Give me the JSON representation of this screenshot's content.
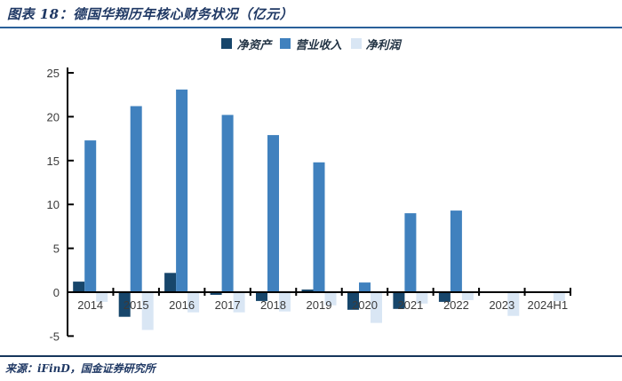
{
  "header": {
    "title": "图表 18：德国华翔历年核心财务状况（亿元）"
  },
  "footer": {
    "source": "来源：iFinD，国金证券研究所"
  },
  "colors": {
    "title_text": "#1F3864",
    "title_rule": "#2A6099",
    "footer_rule": "#16365C",
    "axis_line": "#000000",
    "axis_label": "#3B3B3B",
    "series_net_assets": "#17466B",
    "series_revenue": "#4081BE",
    "series_net_profit": "#D9E6F4"
  },
  "chart_data": {
    "type": "bar",
    "title": "图表 18：德国华翔历年核心财务状况（亿元）",
    "unit": "亿元",
    "xlabel": "",
    "ylabel": "",
    "ylim": [
      -5,
      25
    ],
    "ytick_step": 5,
    "grid": false,
    "legend_position": "top",
    "categories": [
      "2014",
      "2015",
      "2016",
      "2017",
      "2018",
      "2019",
      "2020",
      "2021",
      "2022",
      "2023",
      "2024H1"
    ],
    "series": [
      {
        "name": "净资产",
        "color": "#17466B",
        "values": [
          1.2,
          -2.8,
          2.2,
          -0.3,
          -1.0,
          0.3,
          -2.0,
          -1.9,
          -1.1,
          0,
          0
        ]
      },
      {
        "name": "营业收入",
        "color": "#4081BE",
        "values": [
          17.3,
          21.2,
          23.1,
          20.2,
          17.9,
          14.8,
          1.1,
          9.0,
          9.3,
          0,
          0
        ]
      },
      {
        "name": "净利润",
        "color": "#D9E6F4",
        "values": [
          -1.1,
          -4.3,
          -2.3,
          -2.3,
          -2.2,
          -1.5,
          -3.5,
          -1.3,
          -0.9,
          -2.7,
          -1.0
        ]
      }
    ]
  }
}
